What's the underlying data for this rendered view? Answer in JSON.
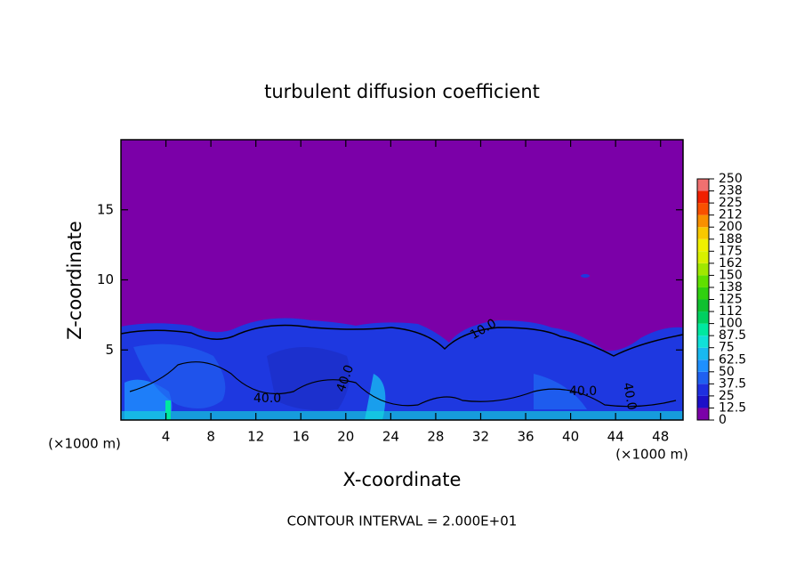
{
  "chart_data": {
    "type": "contour",
    "title": "turbulent diffusion coefficient",
    "x_label": "X-coordinate",
    "y_label": "Z-coordinate",
    "x_unit": "(×1000 m)",
    "y_unit": "(×1000 m)",
    "footer": "CONTOUR INTERVAL = 2.000E+01",
    "contour_labels": [
      "40.0",
      "40.0",
      "40.0",
      "10.0",
      "40.0"
    ],
    "xlim": [
      0,
      50
    ],
    "xticks": [
      4,
      8,
      12,
      16,
      20,
      24,
      28,
      32,
      36,
      40,
      44,
      48
    ],
    "ylim": [
      0,
      20
    ],
    "yticks": [
      5,
      10,
      15
    ],
    "colorbar": {
      "levels": [
        0,
        12.5,
        25,
        37.5,
        50,
        62.5,
        75,
        87.5,
        100,
        112,
        125,
        138,
        150,
        162,
        175,
        188,
        200,
        212,
        225,
        238,
        250
      ],
      "colors": [
        "#7b00a8",
        "#1c10c8",
        "#1e2fe0",
        "#1f60f0",
        "#1e90ff",
        "#18b8f0",
        "#10e0d8",
        "#00e8a0",
        "#00d060",
        "#10c030",
        "#30d010",
        "#60e000",
        "#a0e800",
        "#d8f000",
        "#f0f000",
        "#f8c800",
        "#f89000",
        "#f85000",
        "#f02000",
        "#f07070"
      ]
    }
  }
}
